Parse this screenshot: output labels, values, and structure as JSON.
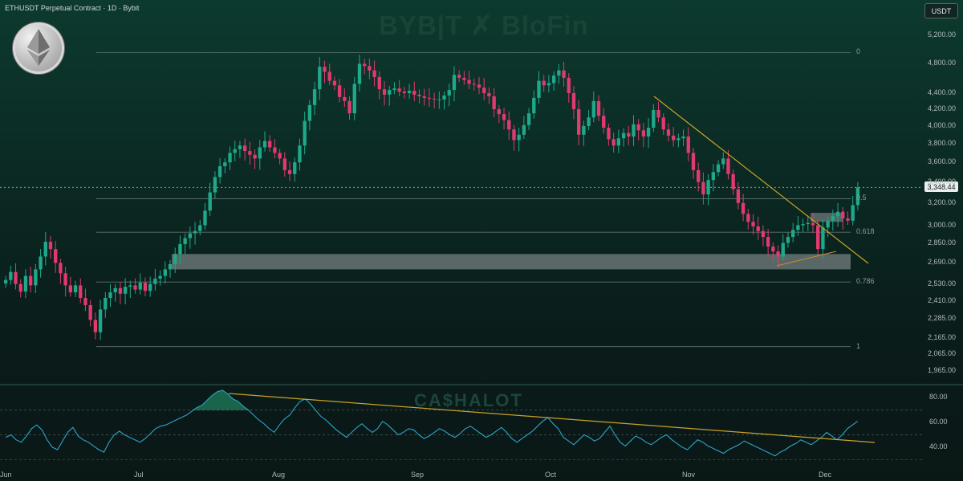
{
  "header": {
    "pair_title": "ETHUSDT Perpetual Contract · 1D · Bybit",
    "unit": "USDT",
    "watermark_top": "BYB|T ✗ BloFin",
    "watermark_bottom": "CA$HALOT",
    "current_price": "3,348.44"
  },
  "colors": {
    "up": "#1fa88a",
    "down": "#e03a6f",
    "trendline": "#c9a227",
    "rsi": "#2ea3c7",
    "zone": "#9aa3a3"
  },
  "chart_data": [
    {
      "type": "candlestick",
      "title": "",
      "x_labels": [
        "Jun",
        "Jul",
        "Aug",
        "Sep",
        "Oct",
        "Nov",
        "Dec"
      ],
      "y_ticks": [
        "5,200.00",
        "4,800.00",
        "4,400.00",
        "4,200.00",
        "4,000.00",
        "3,800.00",
        "3,600.00",
        "3,400.00",
        "3,200.00",
        "3,000.00",
        "2,850.00",
        "2,690.00",
        "2,530.00",
        "2,410.00",
        "2,285.00",
        "2,165.00",
        "2,065.00",
        "1,965.00"
      ],
      "y_log": true,
      "ylim": [
        1930,
        5400
      ],
      "fib_levels": [
        {
          "label": "0",
          "price": 4950
        },
        {
          "label": "0.5",
          "price": 3240
        },
        {
          "label": "0.618",
          "price": 2940
        },
        {
          "label": "0.786",
          "price": 2545
        },
        {
          "label": "1",
          "price": 2110
        }
      ],
      "support_zone": [
        2640,
        2760
      ],
      "current_price": 3348.44,
      "closes": [
        2560,
        2620,
        2530,
        2475,
        2590,
        2520,
        2640,
        2740,
        2860,
        2800,
        2690,
        2610,
        2520,
        2470,
        2520,
        2430,
        2380,
        2280,
        2200,
        2350,
        2430,
        2470,
        2500,
        2460,
        2510,
        2520,
        2490,
        2540,
        2480,
        2530,
        2570,
        2590,
        2640,
        2680,
        2760,
        2840,
        2890,
        2930,
        2950,
        3000,
        3130,
        3300,
        3450,
        3560,
        3600,
        3700,
        3740,
        3780,
        3720,
        3680,
        3640,
        3760,
        3830,
        3760,
        3700,
        3640,
        3520,
        3480,
        3600,
        3780,
        4060,
        4250,
        4450,
        4750,
        4680,
        4560,
        4500,
        4350,
        4300,
        4150,
        4520,
        4790,
        4760,
        4700,
        4610,
        4450,
        4380,
        4440,
        4460,
        4420,
        4400,
        4430,
        4380,
        4360,
        4340,
        4330,
        4320,
        4320,
        4370,
        4440,
        4640,
        4600,
        4570,
        4520,
        4510,
        4470,
        4400,
        4360,
        4200,
        4140,
        4070,
        3960,
        3840,
        3900,
        4010,
        4150,
        4340,
        4560,
        4500,
        4530,
        4630,
        4700,
        4600,
        4400,
        4200,
        3900,
        4000,
        4100,
        4300,
        4120,
        3980,
        3850,
        3780,
        3860,
        3920,
        3880,
        4020,
        3950,
        3880,
        3980,
        4190,
        4100,
        3960,
        3890,
        3840,
        3860,
        3880,
        3700,
        3520,
        3400,
        3280,
        3420,
        3500,
        3580,
        3640,
        3480,
        3330,
        3200,
        3100,
        3030,
        2990,
        2950,
        2900,
        2820,
        2780,
        2740,
        2850,
        2900,
        2960,
        3000,
        3010,
        3020,
        3000,
        2800,
        2980,
        3040,
        3080,
        3120,
        3060,
        3040,
        3180,
        3348
      ],
      "sub_chart": {
        "type": "line",
        "name": "",
        "y_ticks": [
          "80.00",
          "60.00",
          "40.00"
        ],
        "ylim": [
          25,
          88
        ],
        "values": [
          48,
          50,
          46,
          44,
          49,
          55,
          58,
          54,
          46,
          40,
          38,
          45,
          52,
          56,
          49,
          46,
          44,
          41,
          38,
          36,
          44,
          50,
          53,
          50,
          48,
          46,
          44,
          47,
          51,
          55,
          57,
          58,
          60,
          62,
          64,
          66,
          69,
          72,
          74,
          78,
          82,
          85,
          86,
          83,
          79,
          77,
          73,
          70,
          66,
          62,
          59,
          55,
          52,
          58,
          63,
          66,
          72,
          77,
          79,
          75,
          70,
          65,
          62,
          58,
          54,
          51,
          48,
          52,
          56,
          59,
          55,
          52,
          55,
          61,
          58,
          54,
          50,
          52,
          55,
          54,
          50,
          47,
          49,
          52,
          55,
          53,
          50,
          48,
          51,
          55,
          57,
          54,
          51,
          48,
          50,
          53,
          56,
          52,
          47,
          44,
          47,
          50,
          53,
          57,
          61,
          64,
          59,
          55,
          48,
          45,
          42,
          46,
          50,
          48,
          45,
          47,
          52,
          57,
          50,
          44,
          41,
          45,
          49,
          47,
          44,
          42,
          45,
          48,
          50,
          46,
          43,
          40,
          38,
          42,
          46,
          44,
          41,
          39,
          37,
          35,
          38,
          40,
          42,
          45,
          43,
          41,
          39,
          37,
          35,
          33,
          36,
          38,
          41,
          43,
          46,
          44,
          42,
          45,
          48,
          52,
          49,
          46,
          50,
          55,
          58,
          61
        ]
      },
      "rsi_ticks": [
        "80.00",
        "60.00",
        "40.00"
      ]
    }
  ]
}
